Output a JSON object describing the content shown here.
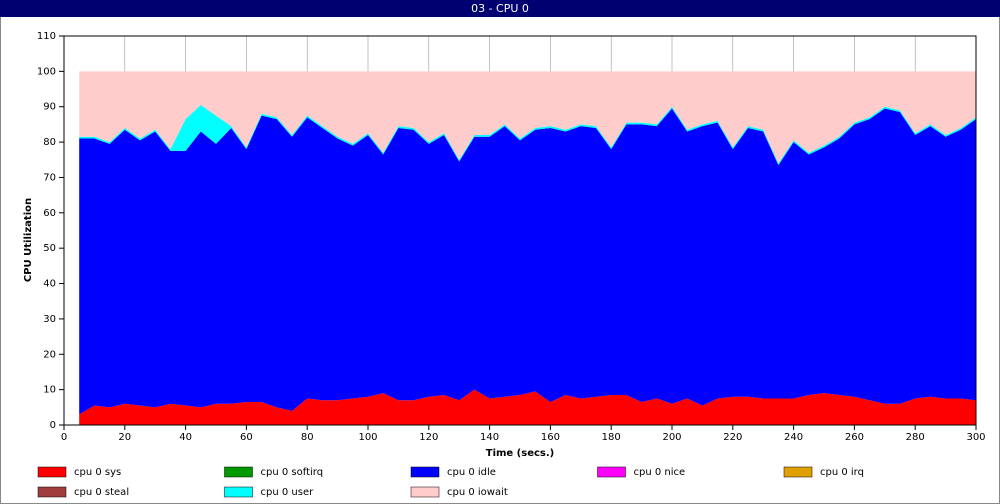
{
  "chart_data": {
    "type": "stacked_area",
    "title": "03 - CPU 0",
    "x_label": "Time (secs.)",
    "y_label": "CPU Utilization",
    "x": [
      5,
      10,
      15,
      20,
      25,
      30,
      35,
      40,
      45,
      50,
      55,
      60,
      65,
      70,
      75,
      80,
      85,
      90,
      95,
      100,
      105,
      110,
      115,
      120,
      125,
      130,
      135,
      140,
      145,
      150,
      155,
      160,
      165,
      170,
      175,
      180,
      185,
      190,
      195,
      200,
      205,
      210,
      215,
      220,
      225,
      230,
      235,
      240,
      245,
      250,
      255,
      260,
      265,
      270,
      275,
      280,
      285,
      290,
      295,
      300
    ],
    "xlim": [
      0,
      300
    ],
    "xticks": [
      0,
      20,
      40,
      60,
      80,
      100,
      120,
      140,
      160,
      180,
      200,
      220,
      240,
      260,
      280,
      300
    ],
    "ylim": [
      0,
      110
    ],
    "yticks": [
      0,
      10,
      20,
      30,
      40,
      50,
      60,
      70,
      80,
      90,
      100,
      110
    ],
    "grid": true,
    "series": [
      {
        "name": "cpu 0 sys",
        "color": "#ff0000",
        "values": [
          3,
          5.5,
          5,
          6,
          5.5,
          5,
          6,
          5.5,
          5,
          6,
          6,
          6.5,
          6.5,
          5,
          4,
          7.5,
          7,
          7,
          7.5,
          8,
          9,
          7,
          7,
          8,
          8.5,
          7,
          10,
          7.5,
          8,
          8.5,
          9.5,
          6.5,
          8.5,
          7.5,
          8,
          8.5,
          8.5,
          6.5,
          7.5,
          6,
          7.5,
          5.5,
          7.5,
          8,
          8,
          7.5,
          7.5,
          7.5,
          8.5,
          9,
          8.5,
          8,
          7,
          6,
          6,
          7.5,
          8,
          7.5,
          7.5,
          7
        ]
      },
      {
        "name": "cpu 0 softirq",
        "color": "#009900",
        "values": [
          0,
          0,
          0,
          0,
          0,
          0,
          0,
          0,
          0,
          0,
          0,
          0,
          0,
          0,
          0,
          0,
          0,
          0,
          0,
          0,
          0,
          0,
          0,
          0,
          0,
          0,
          0,
          0,
          0,
          0,
          0,
          0,
          0,
          0,
          0,
          0,
          0,
          0,
          0,
          0,
          0,
          0,
          0,
          0,
          0,
          0,
          0,
          0,
          0,
          0,
          0,
          0,
          0,
          0,
          0,
          0,
          0,
          0,
          0,
          0
        ]
      },
      {
        "name": "cpu 0 idle",
        "color": "#0000ff",
        "values": [
          78,
          75.5,
          74.5,
          77.5,
          75,
          78,
          71.5,
          72,
          78,
          73.5,
          78,
          71.5,
          81,
          81.5,
          77.5,
          79.5,
          77,
          74,
          71.5,
          74,
          67.5,
          77,
          76.5,
          71.5,
          73.5,
          67.5,
          71.5,
          74,
          76.5,
          72,
          74,
          77.5,
          74.5,
          77,
          76,
          69.5,
          76.5,
          78.5,
          77,
          83.5,
          75.5,
          79,
          78,
          70,
          76,
          75.5,
          66,
          72.5,
          68,
          69.5,
          72.5,
          77,
          79.5,
          83.5,
          82.5,
          74.5,
          76.5,
          74,
          76,
          79.5
        ]
      },
      {
        "name": "cpu 0 nice",
        "color": "#ff00ff",
        "values": [
          0,
          0,
          0,
          0,
          0,
          0,
          0,
          0,
          0,
          0,
          0,
          0,
          0,
          0,
          0,
          0,
          0,
          0,
          0,
          0,
          0,
          0,
          0,
          0,
          0,
          0,
          0,
          0,
          0,
          0,
          0,
          0,
          0,
          0,
          0,
          0,
          0,
          0,
          0,
          0,
          0,
          0,
          0,
          0,
          0,
          0,
          0,
          0,
          0,
          0,
          0,
          0,
          0,
          0,
          0,
          0,
          0,
          0,
          0,
          0
        ]
      },
      {
        "name": "cpu 0 irq",
        "color": "#e0a000",
        "values": [
          0,
          0,
          0,
          0,
          0,
          0,
          0,
          0,
          0,
          0,
          0,
          0,
          0,
          0,
          0,
          0,
          0,
          0,
          0,
          0,
          0,
          0,
          0,
          0,
          0,
          0,
          0,
          0,
          0,
          0,
          0,
          0,
          0,
          0,
          0,
          0,
          0,
          0,
          0,
          0,
          0,
          0,
          0,
          0,
          0,
          0,
          0,
          0,
          0,
          0,
          0,
          0,
          0,
          0,
          0,
          0,
          0,
          0,
          0,
          0
        ]
      },
      {
        "name": "cpu 0 steal",
        "color": "#a03c3c",
        "values": [
          0,
          0,
          0,
          0,
          0,
          0,
          0,
          0,
          0,
          0,
          0,
          0,
          0,
          0,
          0,
          0,
          0,
          0,
          0,
          0,
          0,
          0,
          0,
          0,
          0,
          0,
          0,
          0,
          0,
          0,
          0,
          0,
          0,
          0,
          0,
          0,
          0,
          0,
          0,
          0,
          0,
          0,
          0,
          0,
          0,
          0,
          0,
          0,
          0,
          0,
          0,
          0,
          0,
          0,
          0,
          0,
          0,
          0,
          0,
          0
        ]
      },
      {
        "name": "cpu 0 user",
        "color": "#00ffff",
        "values": [
          0.5,
          0.5,
          0.5,
          0.5,
          0.5,
          0.5,
          0.5,
          9,
          7.5,
          8,
          0.5,
          0.5,
          0.5,
          0.5,
          0.5,
          0.5,
          0.5,
          0.5,
          0.5,
          0.5,
          0.5,
          0.5,
          0.5,
          0.5,
          0.5,
          0.5,
          0.5,
          0.5,
          0.5,
          0.5,
          0.5,
          0.5,
          0.5,
          0.5,
          0.5,
          0.5,
          0.5,
          0.5,
          0.5,
          0.5,
          0.5,
          0.5,
          0.5,
          0.5,
          0.5,
          0.5,
          0.5,
          0.5,
          0.5,
          0.5,
          0.5,
          0.5,
          0.5,
          0.5,
          0.5,
          0.5,
          0.5,
          0.5,
          0.5,
          0.5
        ]
      },
      {
        "name": "cpu 0 iowait",
        "color": "#ffcccc",
        "values": [
          18.5,
          18.5,
          20,
          16,
          19,
          16.5,
          22,
          13.5,
          9.5,
          12.5,
          15.5,
          21.5,
          12,
          13,
          18,
          12.5,
          15.5,
          18.5,
          20.5,
          17.5,
          23,
          15.5,
          16,
          20,
          17.5,
          25,
          18,
          18,
          15,
          19,
          16,
          15.5,
          16.5,
          15,
          15.5,
          21.5,
          14.5,
          14.5,
          15,
          10,
          16.5,
          15,
          14,
          21.5,
          15.5,
          16.5,
          26,
          19.5,
          23,
          21,
          18.5,
          14.5,
          13,
          10,
          11,
          17.5,
          15,
          18,
          16,
          13
        ]
      }
    ]
  }
}
